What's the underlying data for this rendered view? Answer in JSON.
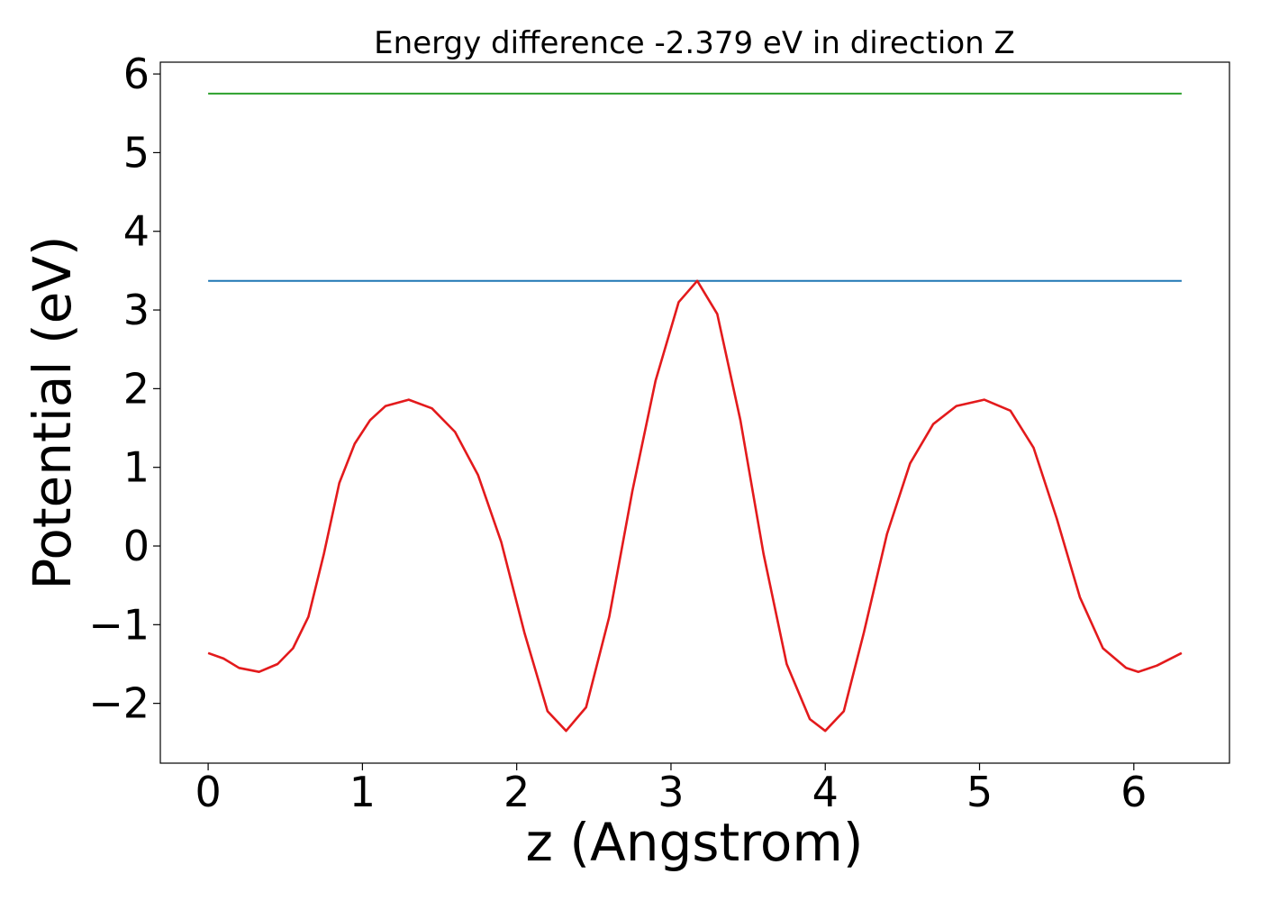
{
  "chart_data": {
    "type": "line",
    "title": "Energy difference -2.379 eV in direction Z",
    "xlabel": "z (Angstrom)",
    "ylabel": "Potential (eV)",
    "xlim": [
      -0.31,
      6.62
    ],
    "ylim": [
      -2.76,
      6.15
    ],
    "xticks": [
      0,
      1,
      2,
      3,
      4,
      5,
      6
    ],
    "yticks": [
      -2,
      -1,
      0,
      1,
      2,
      3,
      4,
      5,
      6
    ],
    "ytick_labels": [
      "−2",
      "−1",
      "0",
      "1",
      "2",
      "3",
      "4",
      "5",
      "6"
    ],
    "grid": false,
    "legend": "none",
    "series": [
      {
        "color": "#2ca02c",
        "x": [
          0,
          6.31
        ],
        "y": [
          5.75,
          5.75
        ]
      },
      {
        "color": "#1f77b4",
        "x": [
          0,
          6.31
        ],
        "y": [
          3.37,
          3.37
        ]
      },
      {
        "color": "#e31a1c",
        "x": [
          0,
          0.1,
          0.2,
          0.33,
          0.45,
          0.55,
          0.65,
          0.75,
          0.85,
          0.95,
          1.05,
          1.15,
          1.3,
          1.45,
          1.6,
          1.75,
          1.9,
          2.05,
          2.2,
          2.32,
          2.45,
          2.6,
          2.75,
          2.9,
          3.05,
          3.17,
          3.3,
          3.45,
          3.6,
          3.75,
          3.9,
          4.0,
          4.12,
          4.25,
          4.4,
          4.55,
          4.7,
          4.85,
          5.03,
          5.2,
          5.35,
          5.5,
          5.65,
          5.8,
          5.95,
          6.03,
          6.15,
          6.31
        ],
        "y": [
          -1.36,
          -1.43,
          -1.55,
          -1.6,
          -1.5,
          -1.3,
          -0.9,
          -0.1,
          0.8,
          1.3,
          1.6,
          1.78,
          1.86,
          1.75,
          1.45,
          0.9,
          0.05,
          -1.1,
          -2.1,
          -2.35,
          -2.05,
          -0.9,
          0.7,
          2.1,
          3.1,
          3.37,
          2.95,
          1.6,
          -0.1,
          -1.5,
          -2.2,
          -2.35,
          -2.1,
          -1.1,
          0.15,
          1.05,
          1.55,
          1.78,
          1.86,
          1.72,
          1.25,
          0.35,
          -0.65,
          -1.3,
          -1.55,
          -1.6,
          -1.52,
          -1.36
        ]
      }
    ]
  }
}
